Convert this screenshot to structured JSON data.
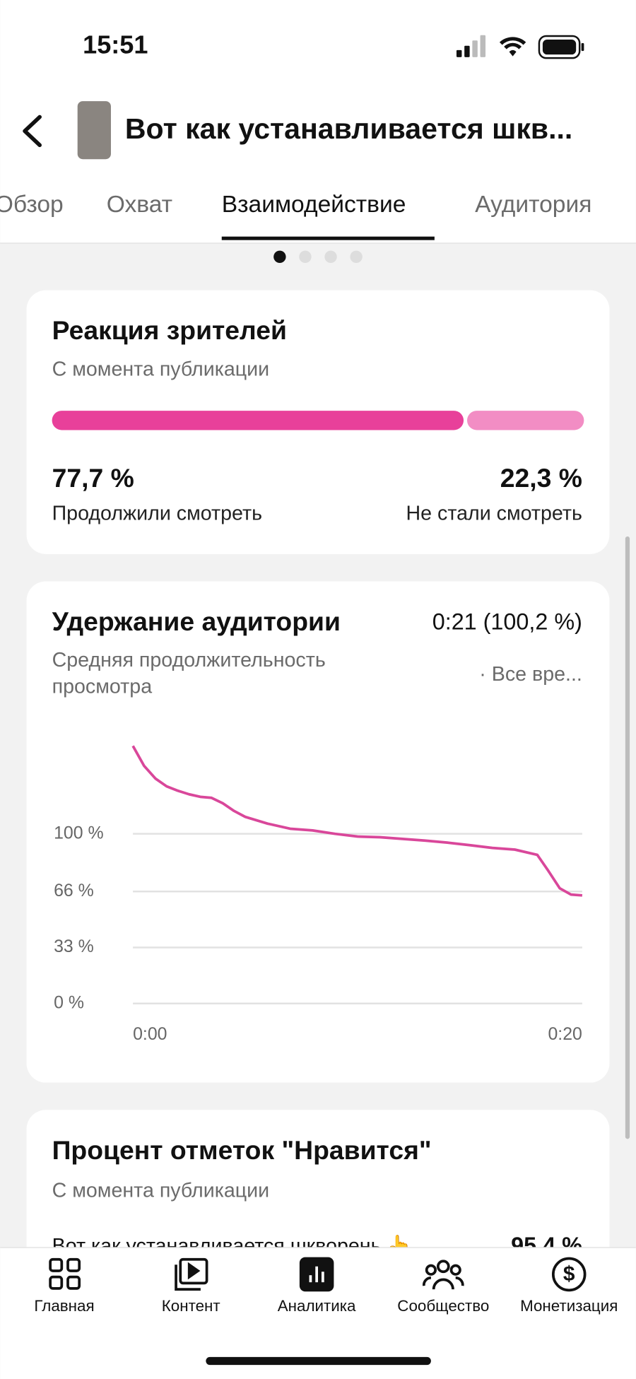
{
  "status_bar": {
    "time": "15:51"
  },
  "header": {
    "title": "Вот как устанавливается шкв..."
  },
  "tabs": [
    "Обзор",
    "Охват",
    "Взаимодействие",
    "Аудитория"
  ],
  "reaction": {
    "title": "Реакция зрителей",
    "subtitle": "С момента публикации",
    "values": [
      77.7,
      22.3
    ],
    "value_labels": [
      "77,7 %",
      "22,3 %"
    ],
    "labels": [
      "Продолжили смотреть",
      "Не стали смотреть"
    ],
    "colors": [
      "#e8409a",
      "#f28dc4"
    ]
  },
  "retention": {
    "title": "Удержание аудитории",
    "summary": "0:21 (100,2 %)",
    "subtitle": [
      "Средняя продолжительность",
      "просмотра"
    ],
    "period": "· Все вре...",
    "chart_data": {
      "type": "line",
      "x": [
        0,
        0.5,
        1,
        1.5,
        2,
        2.5,
        3,
        3.5,
        4,
        4.5,
        5,
        6,
        7,
        8,
        9,
        10,
        11,
        12,
        13,
        14,
        15,
        16,
        17,
        18,
        18.5,
        19,
        19.5,
        20
      ],
      "series": [
        {
          "color": "#d9479a",
          "values": [
            151.8,
            140,
            132.6,
            128,
            125.4,
            123.3,
            121.8,
            121.2,
            118,
            113.5,
            110,
            106,
            103,
            102,
            100,
            98.4,
            98,
            97,
            96,
            94.8,
            93.3,
            91.7,
            90.7,
            87.6,
            78,
            67.9,
            64.2,
            63.7
          ]
        }
      ],
      "xlim": [
        0,
        20
      ],
      "xticks": [
        {
          "value": 0,
          "label": "0:00"
        },
        {
          "value": 20,
          "label": "0:20"
        }
      ],
      "ylim": [
        0,
        155
      ],
      "yticks": [
        {
          "value": 0,
          "label": "0 %"
        },
        {
          "value": 33,
          "label": "33 %"
        },
        {
          "value": 66,
          "label": "66 %"
        },
        {
          "value": 100,
          "label": "100 %"
        }
      ],
      "grid": true
    }
  },
  "likes": {
    "title": "Процент отметок \"Нравится\"",
    "subtitle": "С момента публикации",
    "item": "Вот как устанавливается шкворень 👆",
    "item_value": "95,4 %"
  },
  "nav": [
    "Главная",
    "Контент",
    "Аналитика",
    "Сообщество",
    "Монетизация"
  ]
}
